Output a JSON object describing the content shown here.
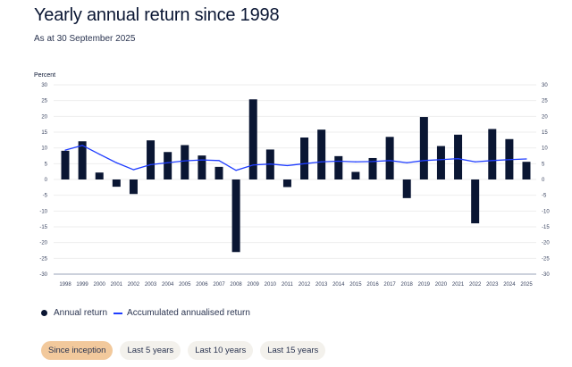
{
  "header": {
    "title": "Yearly annual return since 1998",
    "subtitle": "As at 30 September 2025"
  },
  "legend": {
    "bar_label": "Annual return",
    "line_label": "Accumulated annualised return"
  },
  "buttons": [
    {
      "label": "Since inception",
      "active": true
    },
    {
      "label": "Last 5 years",
      "active": false
    },
    {
      "label": "Last 10 years",
      "active": false
    },
    {
      "label": "Last 15 years",
      "active": false
    }
  ],
  "colors": {
    "bar": "#0a1633",
    "line": "#1f3dff",
    "active_button": "#f2c99c"
  },
  "chart_data": {
    "type": "bar",
    "ylabel": "Percent",
    "ylim": [
      -30,
      30
    ],
    "yticks": [
      30,
      25,
      20,
      15,
      10,
      5,
      0,
      -5,
      -10,
      -15,
      -20,
      -25,
      -30
    ],
    "categories": [
      "1998",
      "1999",
      "2000",
      "2001",
      "2002",
      "2003",
      "2004",
      "2005",
      "2006",
      "2007",
      "2008",
      "2009",
      "2010",
      "2011",
      "2012",
      "2013",
      "2014",
      "2015",
      "2016",
      "2017",
      "2018",
      "2019",
      "2020",
      "2021",
      "2022",
      "2023",
      "2024",
      "2025"
    ],
    "series": [
      {
        "name": "Annual return",
        "type": "bar",
        "values": [
          9.1,
          12.1,
          2.2,
          -2.3,
          -4.6,
          12.4,
          8.7,
          10.9,
          7.6,
          4.0,
          -23.0,
          25.4,
          9.5,
          -2.4,
          13.3,
          15.8,
          7.4,
          2.4,
          6.8,
          13.5,
          -5.9,
          19.8,
          10.6,
          14.2,
          -13.9,
          16.0,
          12.8,
          5.6
        ]
      },
      {
        "name": "Accumulated annualised return",
        "type": "line",
        "values": [
          9.3,
          10.8,
          8.0,
          5.3,
          3.1,
          4.7,
          5.3,
          5.9,
          6.2,
          6.0,
          2.9,
          4.6,
          4.9,
          4.4,
          5.0,
          5.6,
          5.8,
          5.6,
          5.7,
          6.0,
          5.3,
          6.0,
          6.3,
          6.6,
          5.6,
          6.0,
          6.3,
          6.5
        ]
      }
    ],
    "grid": true,
    "legend_position": "bottom-left"
  }
}
